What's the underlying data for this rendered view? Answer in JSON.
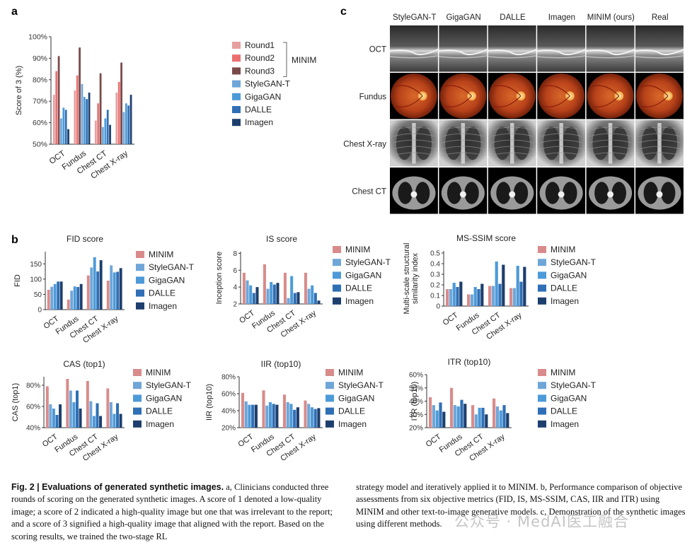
{
  "colors": {
    "MINIM": "#d98b8b",
    "Round1": "#e6a0a0",
    "Round2": "#ea7070",
    "Round3": "#7a4a4a",
    "StyleGAN-T": "#6fa6d8",
    "GigaGAN": "#4d9ad8",
    "DALLE": "#2f6fb5",
    "Imagen": "#1d3f6e"
  },
  "panel_letters": {
    "a": "a",
    "b": "b",
    "c": "c"
  },
  "chart_a": {
    "type": "bar",
    "title": "",
    "ylabel": "Score of 3 (%)",
    "ylim": [
      50,
      100
    ],
    "yticks": [
      "50%",
      "60%",
      "70%",
      "80%",
      "90%",
      "100%"
    ],
    "ytick_values": [
      50,
      60,
      70,
      80,
      90,
      100
    ],
    "categories": [
      "OCT",
      "Fundus",
      "Chest CT",
      "Chest X-ray"
    ],
    "series": [
      {
        "name": "Round1",
        "values": [
          73,
          75,
          61,
          74
        ]
      },
      {
        "name": "Round2",
        "values": [
          84,
          82,
          69,
          79
        ]
      },
      {
        "name": "Round3",
        "values": [
          91,
          95,
          83,
          88
        ]
      },
      {
        "name": "StyleGAN-T",
        "values": [
          62,
          78,
          58,
          65
        ]
      },
      {
        "name": "GigaGAN",
        "values": [
          67,
          72,
          62,
          69
        ]
      },
      {
        "name": "DALLE",
        "values": [
          66,
          71,
          66,
          68
        ]
      },
      {
        "name": "Imagen",
        "values": [
          57,
          74,
          59,
          73
        ]
      }
    ],
    "legend": [
      "Round1",
      "Round2",
      "Round3",
      "StyleGAN-T",
      "GigaGAN",
      "DALLE",
      "Imagen"
    ],
    "legend_group_label": "MINIM"
  },
  "chart_data": [
    {
      "type": "bar",
      "title": "FID score",
      "ylabel": "FID",
      "ylim": [
        0,
        190
      ],
      "yticks": [
        "0",
        "50",
        "100",
        "150"
      ],
      "ytick_values": [
        0,
        50,
        100,
        150
      ],
      "categories": [
        "OCT",
        "Fundus",
        "Chest CT",
        "Chest X-ray"
      ],
      "series": [
        {
          "name": "MINIM",
          "values": [
            65,
            33,
            112,
            95
          ]
        },
        {
          "name": "StyleGAN-T",
          "values": [
            75,
            62,
            138,
            145
          ]
        },
        {
          "name": "GigaGAN",
          "values": [
            84,
            76,
            172,
            122
          ]
        },
        {
          "name": "DALLE",
          "values": [
            92,
            74,
            125,
            124
          ]
        },
        {
          "name": "Imagen",
          "values": [
            92,
            84,
            162,
            136
          ]
        }
      ]
    },
    {
      "type": "bar",
      "title": "IS score",
      "ylabel": "Inception score",
      "ylim": [
        2,
        8.2
      ],
      "yticks": [
        "2",
        "4",
        "6",
        "8"
      ],
      "ytick_values": [
        2,
        4,
        6,
        8
      ],
      "categories": [
        "OCT",
        "Fundus",
        "Chest CT",
        "Chest X-ray"
      ],
      "series": [
        {
          "name": "MINIM",
          "values": [
            5.7,
            6.7,
            5.7,
            5.7
          ]
        },
        {
          "name": "StyleGAN-T",
          "values": [
            4.8,
            3.8,
            2.7,
            3.8
          ]
        },
        {
          "name": "GigaGAN",
          "values": [
            4.2,
            4.6,
            5.3,
            4.2
          ]
        },
        {
          "name": "DALLE",
          "values": [
            3.3,
            4.3,
            3.3,
            3.3
          ]
        },
        {
          "name": "Imagen",
          "values": [
            4.0,
            4.5,
            3.4,
            2.4
          ]
        }
      ]
    },
    {
      "type": "bar",
      "title": "MS-SSIM score",
      "ylabel": "Multi-scale structural similarity index",
      "ylim": [
        0,
        0.52
      ],
      "yticks": [
        "0",
        "0.1",
        "0.2",
        "0.3",
        "0.4",
        "0.5"
      ],
      "ytick_values": [
        0,
        0.1,
        0.2,
        0.3,
        0.4,
        0.5
      ],
      "categories": [
        "OCT",
        "Fundus",
        "Chest CT",
        "Chest X-ray"
      ],
      "series": [
        {
          "name": "MINIM",
          "values": [
            0.16,
            0.11,
            0.19,
            0.17
          ]
        },
        {
          "name": "StyleGAN-T",
          "values": [
            0.16,
            0.11,
            0.19,
            0.17
          ]
        },
        {
          "name": "GigaGAN",
          "values": [
            0.22,
            0.18,
            0.42,
            0.38
          ]
        },
        {
          "name": "DALLE",
          "values": [
            0.18,
            0.16,
            0.21,
            0.23
          ]
        },
        {
          "name": "Imagen",
          "values": [
            0.23,
            0.21,
            0.39,
            0.37
          ]
        }
      ]
    },
    {
      "type": "bar",
      "title": "CAS (top1)",
      "ylabel": "CAS (top1)",
      "ylim": [
        40,
        88
      ],
      "yticks": [
        "40%",
        "60%",
        "80%"
      ],
      "ytick_values": [
        40,
        60,
        80
      ],
      "categories": [
        "OCT",
        "Fundus",
        "Chest CT",
        "Chest X-ray"
      ],
      "series": [
        {
          "name": "MINIM",
          "values": [
            79,
            86,
            84,
            77
          ]
        },
        {
          "name": "StyleGAN-T",
          "values": [
            62,
            75,
            65,
            64
          ]
        },
        {
          "name": "GigaGAN",
          "values": [
            58,
            64,
            51,
            53
          ]
        },
        {
          "name": "DALLE",
          "values": [
            52,
            75,
            63,
            63
          ]
        },
        {
          "name": "Imagen",
          "values": [
            62,
            58,
            51,
            53
          ]
        }
      ]
    },
    {
      "type": "bar",
      "title": "IIR (top10)",
      "ylabel": "IIR (top10)",
      "ylim": [
        20,
        80
      ],
      "yticks": [
        "20%",
        "40%",
        "60%",
        "80%"
      ],
      "ytick_values": [
        20,
        40,
        60,
        80
      ],
      "categories": [
        "OCT",
        "Fundus",
        "Chest CT",
        "Chest X-ray"
      ],
      "series": [
        {
          "name": "MINIM",
          "values": [
            61,
            64,
            59,
            52
          ]
        },
        {
          "name": "StyleGAN-T",
          "values": [
            51,
            46,
            50,
            48
          ]
        },
        {
          "name": "GigaGAN",
          "values": [
            47,
            50,
            48,
            44
          ]
        },
        {
          "name": "DALLE",
          "values": [
            47,
            48,
            41,
            42
          ]
        },
        {
          "name": "Imagen",
          "values": [
            47,
            47,
            44,
            43
          ]
        }
      ]
    },
    {
      "type": "bar",
      "title": "ITR (top10)",
      "ylabel": "ITR (top10)",
      "ylim": [
        20,
        60
      ],
      "yticks": [
        "20%",
        "30%",
        "40%",
        "50%",
        "60%"
      ],
      "ytick_values": [
        20,
        30,
        40,
        50,
        60
      ],
      "categories": [
        "OCT",
        "Fundus",
        "Chest CT",
        "Chest X-ray"
      ],
      "series": [
        {
          "name": "MINIM",
          "values": [
            43,
            50,
            37,
            42
          ]
        },
        {
          "name": "StyleGAN-T",
          "values": [
            37,
            37,
            30,
            36
          ]
        },
        {
          "name": "GigaGAN",
          "values": [
            33,
            36,
            35,
            33
          ]
        },
        {
          "name": "DALLE",
          "values": [
            39,
            41,
            35,
            37
          ]
        },
        {
          "name": "Imagen",
          "values": [
            32,
            38,
            30,
            31
          ]
        }
      ]
    }
  ],
  "legend_b": [
    "MINIM",
    "StyleGAN-T",
    "GigaGAN",
    "DALLE",
    "Imagen"
  ],
  "grid_c": {
    "columns": [
      "StyleGAN-T",
      "GigaGAN",
      "DALLE",
      "Imagen",
      "MINIM (ours)",
      "Real"
    ],
    "rows": [
      "OCT",
      "Fundus",
      "Chest X-ray",
      "Chest CT"
    ]
  },
  "caption": {
    "fig_label": "Fig. 2 | Evaluations of generated synthetic images.",
    "left_rest": " a, Clinicians conducted three rounds of scoring on the generated synthetic images. A score of 1 denoted a low-quality image; a score of 2 indicated a high-quality image but one that was irrelevant to the report; and a score of 3 signified a high-quality image that aligned with the report. Based on the scoring results, we trained the two-stage RL",
    "right": "strategy model and iteratively applied it to MINIM. b, Performance comparison of objective assessments from six objective metrics (FID, IS, MS-SSIM, CAS, IIR and ITR) using MINIM and other text-to-image generative models. c, Demonstration of the synthetic images using different methods."
  },
  "watermark": "公众号 · MedAI医工融合"
}
